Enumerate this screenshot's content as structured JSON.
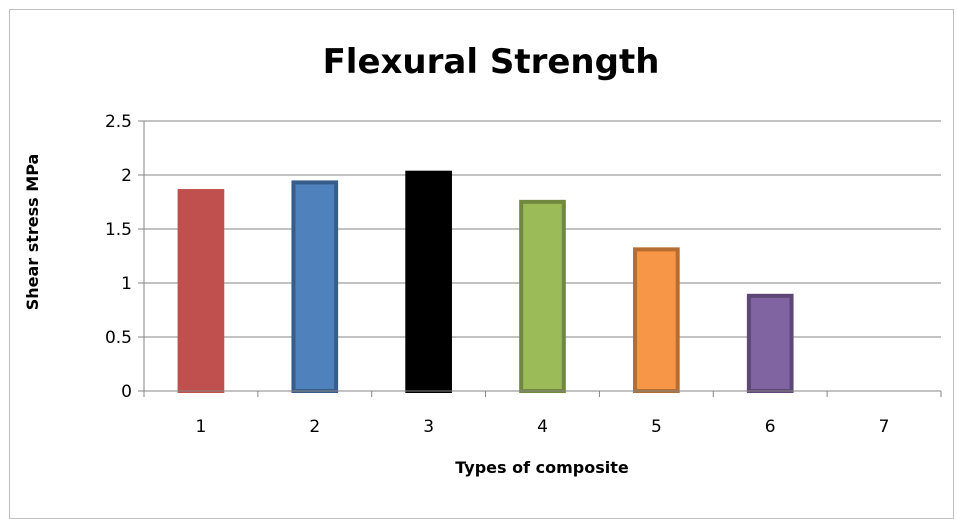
{
  "chart_data": {
    "type": "bar",
    "title": "Flexural Strength",
    "xlabel": "Types of composite",
    "ylabel": "Shear stress MPa",
    "categories": [
      "1",
      "2",
      "3",
      "4",
      "5",
      "6",
      "7"
    ],
    "values": [
      1.87,
      1.95,
      2.04,
      1.77,
      1.33,
      0.9,
      null
    ],
    "ylim": [
      0,
      2.5
    ],
    "yticks": [
      "0",
      "0.5",
      "1",
      "1.5",
      "2",
      "2.5"
    ],
    "grid": true,
    "legend": "none",
    "bar_fills": [
      "#c0504d",
      "#4f81bd",
      "#000000",
      "#9bbb59",
      "#f79646",
      "#8064a2",
      "#ffffff"
    ],
    "bar_borders": [
      "#c0504d",
      "#385d8a",
      "#000000",
      "#71893f",
      "#b66d31",
      "#5c4776",
      "#ffffff"
    ]
  }
}
